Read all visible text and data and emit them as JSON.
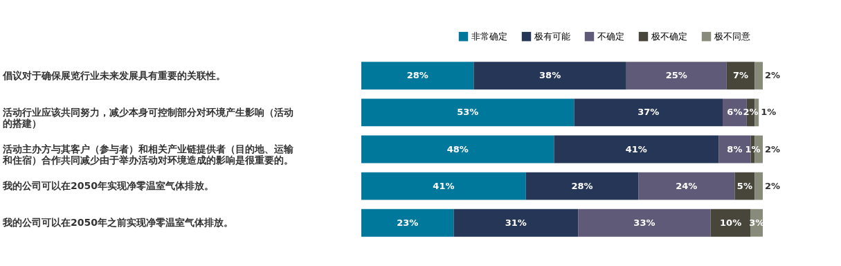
{
  "chart_data": {
    "type": "bar",
    "orientation": "horizontal",
    "stacked": true,
    "legend": "top right",
    "grid": false,
    "categories": [
      "倡议对于确保展览行业未来发展具有重要的关联性。",
      "活动行业应该共同努力，减少本身可控制部分对环境产生影响（活动的搭建）",
      "活动主办方与其客户（参与者）和相关产业链提供者（目的地、运输和住宿）合作共同减少由于举办活动对环境造成的影响是很重要的。",
      "我的公司可以在2050年实现净零温室气体排放。",
      "我的公司可以在2050年之前实现净零温室气体排放。"
    ],
    "series": [
      {
        "name": "非常确定",
        "color": "#00789c",
        "values": [
          28,
          53,
          48,
          41,
          23
        ],
        "value_labels": [
          "28%",
          "53%",
          "48%",
          "41%",
          "23%"
        ]
      },
      {
        "name": "极有可能",
        "color": "#253656",
        "values": [
          38,
          37,
          41,
          28,
          31
        ],
        "value_labels": [
          "38%",
          "37%",
          "41%",
          "28%",
          "31%"
        ]
      },
      {
        "name": "不确定",
        "color": "#5f5a77",
        "values": [
          25,
          6,
          8,
          24,
          33
        ],
        "value_labels": [
          "25%",
          "6%",
          "8%",
          "24%",
          "33%"
        ]
      },
      {
        "name": "极不确定",
        "color": "#48463b",
        "values": [
          7,
          2,
          1,
          5,
          10
        ],
        "value_labels": [
          "7%",
          "2%",
          "1%",
          "5%",
          "10%"
        ]
      },
      {
        "name": "极不同意",
        "color": "#888a7a",
        "values": [
          2,
          1,
          2,
          2,
          3
        ],
        "value_labels": [
          "2%",
          "1%",
          "2%",
          "2%",
          "3%"
        ]
      }
    ]
  }
}
